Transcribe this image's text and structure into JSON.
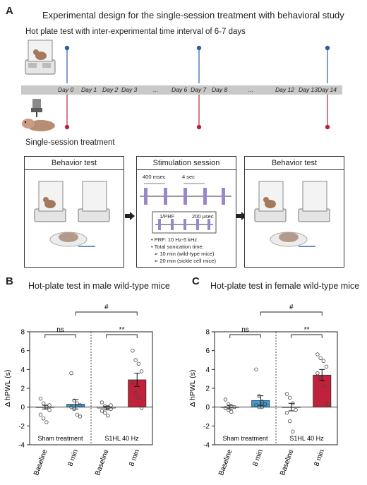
{
  "panel_a": {
    "letter": "A",
    "title": "Experimental design for the single-session treatment with behavioral study",
    "hotplate_caption": "Hot plate test with inter-experimental time interval of 6-7 days",
    "treatment_caption": "Single-session treatment",
    "days": [
      "Day 0",
      "Day 1",
      "Day 2",
      "Day 3",
      "...",
      "Day 6",
      "Day 7",
      "Day 8",
      "...",
      "Day 12",
      "Day 13",
      "Day 14"
    ],
    "boxes": {
      "behavior_left": "Behavior test",
      "stimulation": "Stimulation session",
      "behavior_right": "Behavior test"
    },
    "pulse_labels": {
      "msec": "400 msec",
      "sec": "4 sec",
      "prf": "1/PRF",
      "usec": "200 µsec"
    },
    "notes": {
      "prf": "PRF: 10 Hz-5 kHz",
      "total": "Total sonication time:",
      "wild": "10 min (wild-type mice)",
      "sickle": "20 min (sickle cell mice)"
    },
    "colors": {
      "blue": "#2a5fa0",
      "red": "#c0223b",
      "purple": "#9a86c8"
    }
  },
  "panel_b": {
    "letter": "B",
    "title": "Hot-plate test in male wild-type mice"
  },
  "panel_c": {
    "letter": "C",
    "title": "Hot-plate test in female wild-type mice"
  },
  "chart_data": [
    {
      "type": "bar",
      "title": "Hot-plate test in male wild-type mice",
      "ylabel": "Δ hPWL (s)",
      "ylim": [
        -4,
        8
      ],
      "yticks": [
        -4,
        -2,
        0,
        2,
        4,
        6,
        8
      ],
      "categories": [
        "Baseline",
        "8 min",
        "Baseline",
        "8 min"
      ],
      "group_labels": [
        "Sham treatment",
        "S1HL 40 Hz"
      ],
      "values": [
        0.0,
        0.3,
        -0.1,
        2.9
      ],
      "errors": [
        0.2,
        0.5,
        0.2,
        0.7
      ],
      "bar_colors": [
        "#ffffff",
        "#3d9bd4",
        "#ffffff",
        "#c0223b"
      ],
      "points": [
        [
          0.9,
          0.4,
          0.0,
          -0.3,
          -0.8,
          -1.2,
          -1.6,
          0.2
        ],
        [
          3.6,
          0.7,
          0.4,
          0.2,
          0.0,
          -0.2,
          -0.8,
          -1.0
        ],
        [
          0.5,
          0.1,
          0.0,
          -0.2,
          -0.4,
          -0.6,
          -0.9,
          0.2
        ],
        [
          6.0,
          5.0,
          4.6,
          3.8,
          2.6,
          1.5,
          1.0,
          -0.1
        ]
      ],
      "significance": [
        {
          "label": "ns",
          "pair": [
            0,
            1
          ]
        },
        {
          "label": "**",
          "pair": [
            2,
            3
          ]
        },
        {
          "label": "#",
          "pair": [
            1,
            3
          ]
        }
      ]
    },
    {
      "type": "bar",
      "title": "Hot-plate test in female wild-type mice",
      "ylabel": "Δ hPWL (s)",
      "ylim": [
        -4,
        8
      ],
      "yticks": [
        -4,
        -2,
        0,
        2,
        4,
        6,
        8
      ],
      "categories": [
        "Baseline",
        "8 min",
        "Baseline",
        "8 min"
      ],
      "group_labels": [
        "Sham treatment",
        "S1HL 40 Hz"
      ],
      "values": [
        0.0,
        0.7,
        0.0,
        3.4
      ],
      "errors": [
        0.2,
        0.5,
        0.4,
        0.6
      ],
      "bar_colors": [
        "#ffffff",
        "#3d9bd4",
        "#ffffff",
        "#c0223b"
      ],
      "points": [
        [
          0.8,
          0.3,
          0.1,
          0.0,
          -0.1,
          -0.3,
          -0.5
        ],
        [
          4.0,
          1.2,
          0.6,
          0.3,
          0.2,
          0.0,
          0.0,
          0.3
        ],
        [
          1.4,
          1.0,
          0.4,
          -0.3,
          -0.6,
          -1.5,
          -2.6
        ],
        [
          5.6,
          5.2,
          4.9,
          4.3,
          3.6,
          3.1,
          2.2,
          0.3
        ]
      ],
      "significance": [
        {
          "label": "ns",
          "pair": [
            0,
            1
          ]
        },
        {
          "label": "**",
          "pair": [
            2,
            3
          ]
        },
        {
          "label": "#",
          "pair": [
            1,
            3
          ]
        }
      ]
    }
  ]
}
